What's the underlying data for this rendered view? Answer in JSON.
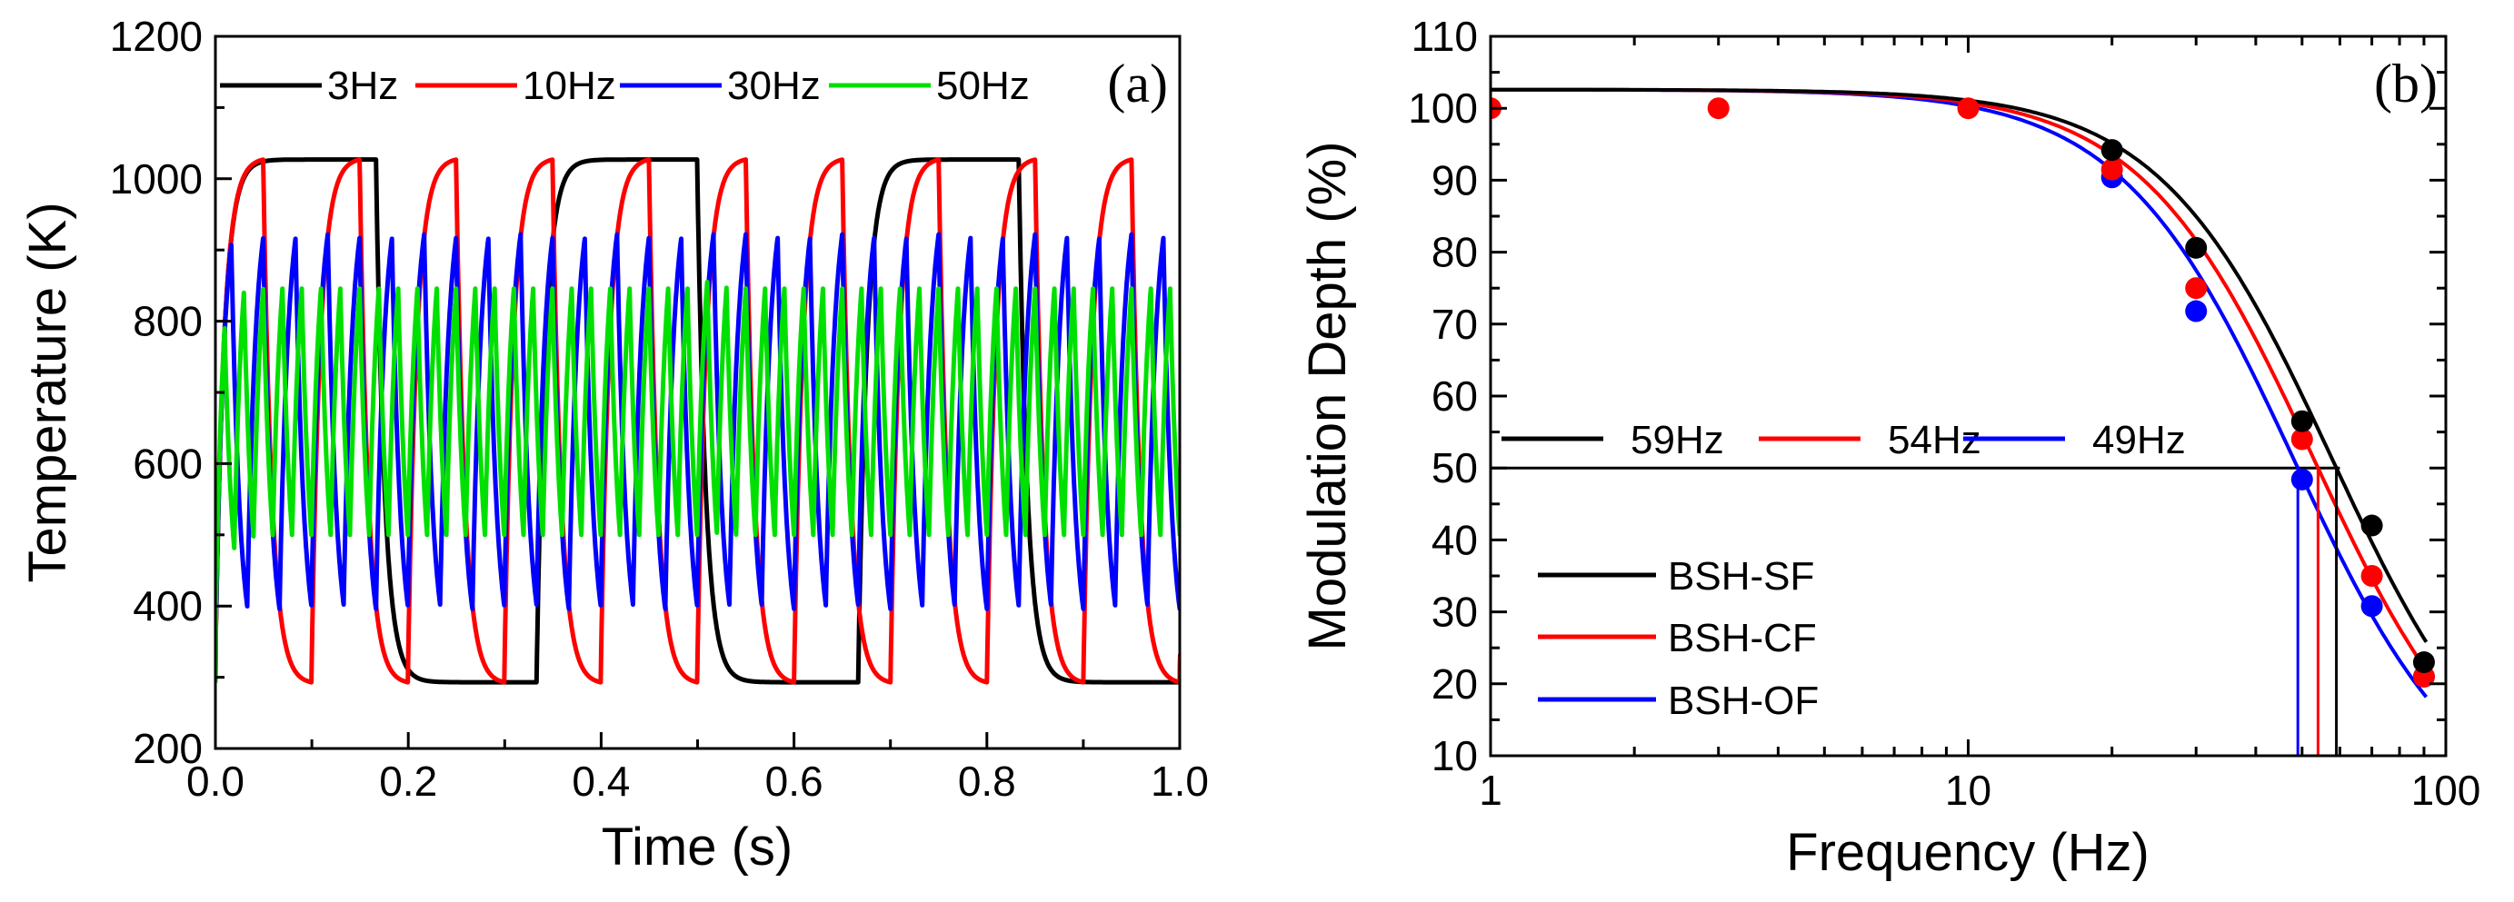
{
  "chart_data": [
    {
      "type": "line",
      "panel_label": "(a)",
      "xlabel": "Time (s)",
      "ylabel": "Temperature (K)",
      "xlim": [
        0.0,
        1.0
      ],
      "ylim": [
        200,
        1200
      ],
      "xticks": [
        "0.0",
        "0.2",
        "0.4",
        "0.6",
        "0.8",
        "1.0"
      ],
      "yticks": [
        "200",
        "400",
        "600",
        "800",
        "1000",
        "1200"
      ],
      "grid": false,
      "legend_position": "top",
      "series": [
        {
          "name": "3Hz",
          "color": "#000000",
          "frequency_hz": 3,
          "t_min_k": 293,
          "t_max_k": 1027,
          "rise_tau_s": 0.009,
          "fall_tau_s": 0.009
        },
        {
          "name": "10Hz",
          "color": "#ff0000",
          "frequency_hz": 10,
          "t_min_k": 293,
          "t_max_k": 1027,
          "rise_tau_s": 0.009,
          "fall_tau_s": 0.009
        },
        {
          "name": "30Hz",
          "color": "#0000ff",
          "frequency_hz": 30,
          "t_min_k": 396,
          "t_max_k": 922,
          "rise_tau_s": 0.009,
          "fall_tau_s": 0.009
        },
        {
          "name": "50Hz",
          "color": "#00e000",
          "frequency_hz": 50,
          "t_min_k": 500,
          "t_max_k": 855,
          "rise_tau_s": 0.009,
          "fall_tau_s": 0.009
        }
      ]
    },
    {
      "type": "line",
      "panel_label": "(b)",
      "xlabel": "Frequency (Hz)",
      "ylabel": "Modulation Depth (%)",
      "xscale": "log",
      "xlim": [
        1,
        100
      ],
      "ylim": [
        10,
        110
      ],
      "xticks": [
        "1",
        "10",
        "100"
      ],
      "yticks": [
        "10",
        "20",
        "30",
        "40",
        "50",
        "60",
        "70",
        "80",
        "90",
        "100",
        "110"
      ],
      "grid": false,
      "threshold_line": 50,
      "cutoff_legend_position": "middle-left",
      "series_legend_position": "bottom-left",
      "series": [
        {
          "name": "BSH-SF",
          "color": "#000000",
          "cutoff_hz": 59,
          "cutoff_label": "59Hz",
          "points": [
            {
              "x": 20,
              "y": 94.2
            },
            {
              "x": 30,
              "y": 80.6
            },
            {
              "x": 50,
              "y": 56.5
            },
            {
              "x": 70,
              "y": 42.0
            },
            {
              "x": 90,
              "y": 23.0
            }
          ]
        },
        {
          "name": "BSH-CF",
          "color": "#ff0000",
          "cutoff_hz": 54,
          "cutoff_label": "54Hz",
          "points": [
            {
              "x": 1,
              "y": 100.0
            },
            {
              "x": 3,
              "y": 100.0
            },
            {
              "x": 10,
              "y": 100.0
            },
            {
              "x": 20,
              "y": 91.5
            },
            {
              "x": 30,
              "y": 75.0
            },
            {
              "x": 50,
              "y": 54.0
            },
            {
              "x": 70,
              "y": 35.0
            },
            {
              "x": 90,
              "y": 21.0
            }
          ]
        },
        {
          "name": "BSH-OF",
          "color": "#0000ff",
          "cutoff_hz": 49,
          "cutoff_label": "49Hz",
          "points": [
            {
              "x": 20,
              "y": 90.4
            },
            {
              "x": 30,
              "y": 71.8
            },
            {
              "x": 50,
              "y": 48.4
            },
            {
              "x": 70,
              "y": 30.8
            },
            {
              "x": 90,
              "y": 21.0
            }
          ]
        }
      ]
    }
  ]
}
